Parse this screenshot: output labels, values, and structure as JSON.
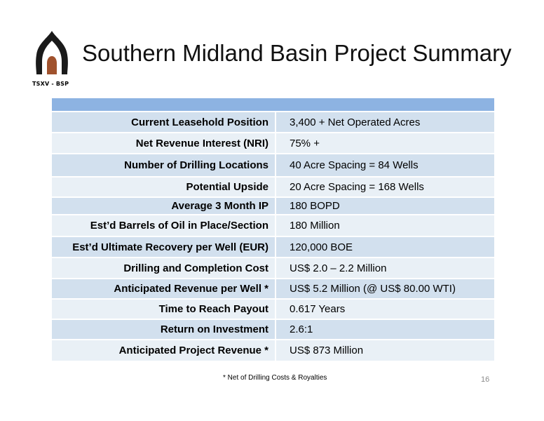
{
  "header": {
    "title": "Southern Midland Basin Project Summary",
    "ticker": "TSXV - BSP",
    "logo_icon": "dome-arch-logo-icon"
  },
  "table": {
    "rows": [
      {
        "label": "Current Leasehold Position",
        "value": "3,400 + Net Operated Acres"
      },
      {
        "label": "Net Revenue Interest (NRI)",
        "value": "75% +"
      },
      {
        "label": "Number of Drilling Locations",
        "value": "40 Acre Spacing = 84 Wells"
      },
      {
        "label": "Potential Upside",
        "value": "20 Acre Spacing = 168 Wells"
      },
      {
        "label": "Average 3 Month IP",
        "value": "180 BOPD"
      },
      {
        "label": "Est’d Barrels of Oil in Place/Section",
        "value": "180 Million"
      },
      {
        "label": "Est’d Ultimate Recovery per Well (EUR)",
        "value": "120,000 BOE"
      },
      {
        "label": "Drilling and Completion Cost",
        "value": "US$ 2.0 – 2.2 Million"
      },
      {
        "label": "Anticipated Revenue per Well *",
        "value": "US$ 5.2 Million (@ US$ 80.00 WTI)"
      },
      {
        "label": "Time to Reach Payout",
        "value": "0.617 Years"
      },
      {
        "label": "Return on Investment",
        "value": "2.6:1"
      },
      {
        "label": "Anticipated Project Revenue *",
        "value": "US$ 873 Million"
      }
    ]
  },
  "footer": {
    "note": "* Net of Drilling Costs & Royalties",
    "page_number": "16"
  },
  "colors": {
    "header_row": "#8db3e2",
    "row_dark": "#d2e0ee",
    "row_light": "#e9f0f6",
    "logo_dark": "#1a1a1a",
    "logo_accent": "#a0522d"
  }
}
